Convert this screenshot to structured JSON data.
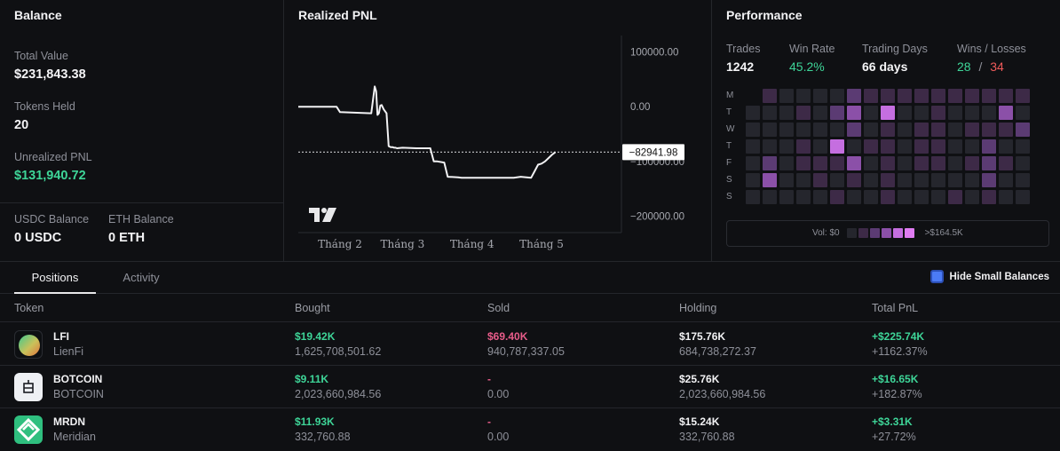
{
  "balance": {
    "title": "Balance",
    "total_value_label": "Total Value",
    "total_value": "$231,843.38",
    "tokens_held_label": "Tokens Held",
    "tokens_held": "20",
    "unrealized_label": "Unrealized PNL",
    "unrealized_value": "$131,940.72",
    "usdc_label": "USDC Balance",
    "usdc_value": "0 USDC",
    "eth_label": "ETH Balance",
    "eth_value": "0 ETH"
  },
  "pnl": {
    "title": "Realized PNL",
    "current_label": "−82941.98"
  },
  "chart_data": {
    "type": "line",
    "title": "Realized PNL",
    "y_ticks": [
      "100000.00",
      "0.00",
      "−100000.00",
      "−200000.00"
    ],
    "y_tick_values": [
      100000,
      0,
      -100000,
      -200000
    ],
    "x_ticks": [
      "Tháng 2",
      "Tháng 3",
      "Tháng 4",
      "Tháng 5"
    ],
    "x_tick_positions": [
      1.6,
      2.5,
      3.5,
      4.5
    ],
    "xlim": [
      1.0,
      5.65
    ],
    "ylim": [
      -230000,
      130000
    ],
    "current_value": -82941.98,
    "series": [
      {
        "x": [
          1.0,
          1.55,
          1.6,
          2.05,
          2.1,
          2.12,
          2.14,
          2.16,
          2.18,
          2.2,
          2.23,
          2.27,
          2.3,
          2.33,
          2.36,
          2.38,
          2.4,
          2.42,
          2.5,
          2.7,
          2.9,
          2.95,
          3.0,
          3.1,
          3.15,
          3.3,
          3.35,
          3.5,
          3.8,
          4.1,
          4.2,
          4.35,
          4.4,
          4.45,
          4.5,
          4.55,
          4.6,
          4.65,
          4.7
        ],
        "y": [
          0,
          0,
          -10000,
          -12000,
          37000,
          28000,
          -15000,
          -12000,
          2000,
          3000,
          -5000,
          -12000,
          -72000,
          -74000,
          -74000,
          -75000,
          -75000,
          -76000,
          -75000,
          -76000,
          -76000,
          -100000,
          -100000,
          -102000,
          -128000,
          -129000,
          -130000,
          -130000,
          -130000,
          -130000,
          -128000,
          -130000,
          -118000,
          -106000,
          -104000,
          -100000,
          -94000,
          -88000,
          -83000
        ]
      }
    ]
  },
  "perf": {
    "title": "Performance",
    "trades_label": "Trades",
    "trades_value": "1242",
    "winrate_label": "Win Rate",
    "winrate_value": "45.2%",
    "days_label": "Trading Days",
    "days_value": "66 days",
    "wl_label": "Wins / Losses",
    "wins": "28",
    "slash": "/",
    "losses": "34",
    "day_labels": [
      "M",
      "T",
      "W",
      "T",
      "F",
      "S",
      "S"
    ],
    "heat_levels": [
      [
        -1,
        1,
        0,
        0,
        0,
        0,
        2,
        1,
        1,
        1,
        1,
        1,
        1,
        1,
        1,
        1,
        1
      ],
      [
        0,
        0,
        0,
        1,
        0,
        2,
        3,
        0,
        4,
        0,
        0,
        1,
        0,
        0,
        0,
        3,
        0
      ],
      [
        0,
        0,
        0,
        0,
        0,
        0,
        2,
        0,
        1,
        0,
        1,
        1,
        0,
        1,
        1,
        1,
        2
      ],
      [
        0,
        0,
        0,
        1,
        0,
        4,
        0,
        1,
        1,
        0,
        1,
        1,
        0,
        0,
        2,
        0,
        0
      ],
      [
        0,
        2,
        0,
        1,
        1,
        1,
        3,
        0,
        1,
        0,
        1,
        1,
        0,
        1,
        2,
        1,
        0
      ],
      [
        0,
        3,
        0,
        0,
        1,
        0,
        1,
        0,
        1,
        0,
        0,
        0,
        0,
        0,
        2,
        0,
        0
      ],
      [
        0,
        0,
        0,
        0,
        0,
        1,
        0,
        0,
        1,
        0,
        0,
        0,
        1,
        0,
        1,
        0,
        0
      ]
    ],
    "heat_colors": [
      "#25262d",
      "#3d2a47",
      "#5b3b73",
      "#8b50a8",
      "#c56ee0"
    ],
    "legend_left": "Vol: $0",
    "legend_right": ">$164.5K"
  },
  "tabs": {
    "positions": "Positions",
    "activity": "Activity",
    "hide_small": "Hide Small Balances"
  },
  "table": {
    "headers": [
      "Token",
      "Bought",
      "Sold",
      "Holding",
      "Total PnL"
    ],
    "rows": [
      {
        "symbol": "LFI",
        "name": "LienFi",
        "bought": "$19.42K",
        "bought_amt": "1,625,708,501.62",
        "sold": "$69.40K",
        "sold_amt": "940,787,337.05",
        "holding": "$175.76K",
        "holding_amt": "684,738,272.37",
        "pnl": "+$225.74K",
        "pnl_pct": "+1162.37%"
      },
      {
        "symbol": "BOTCOIN",
        "name": "BOTCOIN",
        "bought": "$9.11K",
        "bought_amt": "2,023,660,984.56",
        "sold": "-",
        "sold_amt": "0.00",
        "holding": "$25.76K",
        "holding_amt": "2,023,660,984.56",
        "pnl": "+$16.65K",
        "pnl_pct": "+182.87%"
      },
      {
        "symbol": "MRDN",
        "name": "Meridian",
        "bought": "$11.93K",
        "bought_amt": "332,760.88",
        "sold": "-",
        "sold_amt": "0.00",
        "holding": "$15.24K",
        "holding_amt": "332,760.88",
        "pnl": "+$3.31K",
        "pnl_pct": "+27.72%"
      }
    ]
  }
}
